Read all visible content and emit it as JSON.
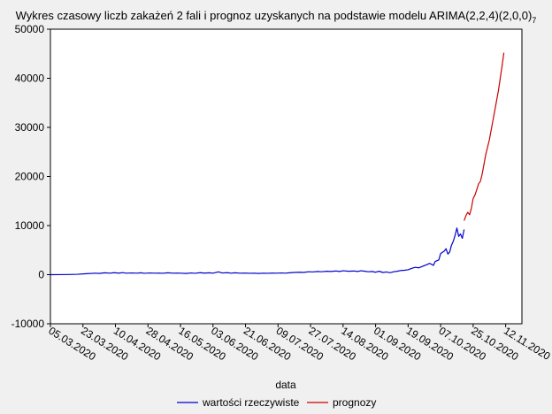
{
  "chart_data": {
    "type": "line",
    "title": "Wykres czasowy liczb zakażeń 2 fali i prognoz uzyskanych na podstawie modelu ARIMA(2,2,4)(2,0,0)",
    "title_subscript": "7",
    "xlabel": "data",
    "ylabel": "",
    "ylim": [
      -10000,
      50000
    ],
    "yticks": [
      -10000,
      0,
      10000,
      20000,
      30000,
      40000,
      50000
    ],
    "x_domain_days": [
      0,
      261
    ],
    "x_ticks": [
      {
        "day": 0,
        "label": "05.03.2020"
      },
      {
        "day": 18,
        "label": "23.03.2020"
      },
      {
        "day": 36,
        "label": "10.04.2020"
      },
      {
        "day": 54,
        "label": "28.04.2020"
      },
      {
        "day": 72,
        "label": "16.05.2020"
      },
      {
        "day": 90,
        "label": "03.06.2020"
      },
      {
        "day": 108,
        "label": "21.06.2020"
      },
      {
        "day": 126,
        "label": "09.07.2020"
      },
      {
        "day": 144,
        "label": "27.07.2020"
      },
      {
        "day": 162,
        "label": "14.08.2020"
      },
      {
        "day": 180,
        "label": "01.09.2020"
      },
      {
        "day": 198,
        "label": "19.09.2020"
      },
      {
        "day": 216,
        "label": "07.10.2020"
      },
      {
        "day": 234,
        "label": "25.10.2020"
      },
      {
        "day": 252,
        "label": "12.11.2020"
      }
    ],
    "series": [
      {
        "name": "wartości rzeczywiste",
        "color": "#0000cc",
        "points": [
          [
            0,
            1
          ],
          [
            5,
            10
          ],
          [
            10,
            30
          ],
          [
            15,
            80
          ],
          [
            20,
            200
          ],
          [
            25,
            300
          ],
          [
            27,
            250
          ],
          [
            30,
            380
          ],
          [
            33,
            300
          ],
          [
            35,
            400
          ],
          [
            38,
            320
          ],
          [
            40,
            420
          ],
          [
            42,
            300
          ],
          [
            45,
            350
          ],
          [
            48,
            300
          ],
          [
            50,
            380
          ],
          [
            52,
            280
          ],
          [
            55,
            350
          ],
          [
            58,
            300
          ],
          [
            60,
            320
          ],
          [
            62,
            280
          ],
          [
            65,
            380
          ],
          [
            68,
            300
          ],
          [
            70,
            330
          ],
          [
            72,
            300
          ],
          [
            75,
            250
          ],
          [
            78,
            350
          ],
          [
            80,
            280
          ],
          [
            83,
            400
          ],
          [
            85,
            320
          ],
          [
            88,
            380
          ],
          [
            90,
            300
          ],
          [
            93,
            580
          ],
          [
            95,
            350
          ],
          [
            98,
            400
          ],
          [
            100,
            300
          ],
          [
            102,
            380
          ],
          [
            105,
            300
          ],
          [
            108,
            320
          ],
          [
            110,
            280
          ],
          [
            113,
            300
          ],
          [
            115,
            250
          ],
          [
            118,
            300
          ],
          [
            120,
            280
          ],
          [
            123,
            320
          ],
          [
            125,
            300
          ],
          [
            128,
            350
          ],
          [
            130,
            300
          ],
          [
            133,
            400
          ],
          [
            135,
            450
          ],
          [
            138,
            500
          ],
          [
            140,
            450
          ],
          [
            143,
            600
          ],
          [
            145,
            550
          ],
          [
            148,
            650
          ],
          [
            150,
            600
          ],
          [
            153,
            700
          ],
          [
            155,
            650
          ],
          [
            158,
            750
          ],
          [
            160,
            650
          ],
          [
            162,
            800
          ],
          [
            165,
            700
          ],
          [
            168,
            750
          ],
          [
            170,
            650
          ],
          [
            172,
            800
          ],
          [
            174,
            700
          ],
          [
            176,
            600
          ],
          [
            178,
            650
          ],
          [
            180,
            500
          ],
          [
            182,
            700
          ],
          [
            184,
            450
          ],
          [
            186,
            550
          ],
          [
            188,
            400
          ],
          [
            190,
            600
          ],
          [
            192,
            700
          ],
          [
            194,
            850
          ],
          [
            196,
            900
          ],
          [
            198,
            1000
          ],
          [
            200,
            1300
          ],
          [
            202,
            1500
          ],
          [
            204,
            1400
          ],
          [
            206,
            1700
          ],
          [
            208,
            2000
          ],
          [
            210,
            2300
          ],
          [
            212,
            1900
          ],
          [
            213,
            2700
          ],
          [
            215,
            3000
          ],
          [
            216,
            4300
          ],
          [
            218,
            4800
          ],
          [
            219,
            5300
          ],
          [
            220,
            4200
          ],
          [
            221,
            4600
          ],
          [
            222,
            6000
          ],
          [
            223,
            6800
          ],
          [
            224,
            8000
          ],
          [
            225,
            9500
          ],
          [
            226,
            7800
          ],
          [
            227,
            8300
          ],
          [
            228,
            7400
          ],
          [
            229,
            9200
          ]
        ]
      },
      {
        "name": "prognozy",
        "color": "#cc0000",
        "points": [
          [
            229,
            11000
          ],
          [
            230,
            12000
          ],
          [
            231,
            12700
          ],
          [
            232,
            12200
          ],
          [
            233,
            13500
          ],
          [
            234,
            15500
          ],
          [
            235,
            16200
          ],
          [
            236,
            17300
          ],
          [
            237,
            18500
          ],
          [
            238,
            19000
          ],
          [
            239,
            20500
          ],
          [
            240,
            22500
          ],
          [
            241,
            24500
          ],
          [
            242,
            26000
          ],
          [
            243,
            27500
          ],
          [
            244,
            29500
          ],
          [
            245,
            31500
          ],
          [
            246,
            33500
          ],
          [
            247,
            35500
          ],
          [
            248,
            37500
          ],
          [
            249,
            40000
          ],
          [
            250,
            42500
          ],
          [
            251,
            45200
          ]
        ]
      }
    ],
    "legend": {
      "placement": "bottom-center",
      "entries": [
        "wartości rzeczywiste",
        "prognozy"
      ]
    }
  }
}
